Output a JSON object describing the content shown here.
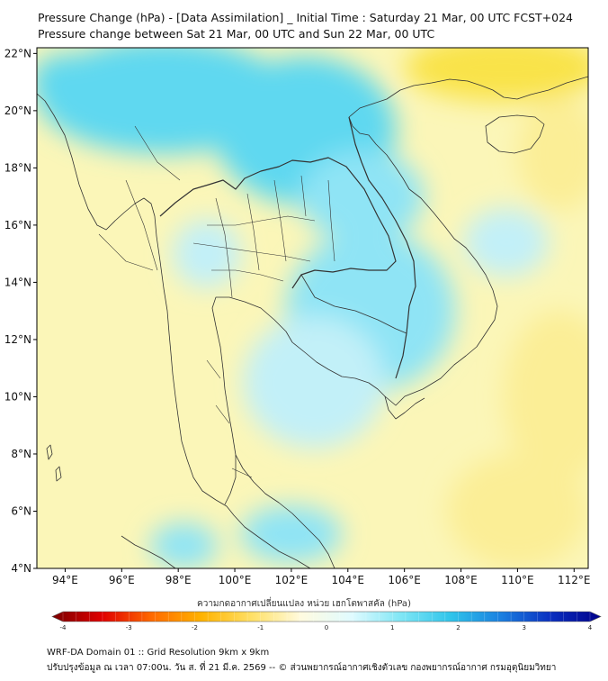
{
  "title_line1": "Pressure Change (hPa) - [Data Assimilation] _ Initial Time : Saturday 21 Mar, 00 UTC FCST+024",
  "title_line2": "Pressure change between Sat 21 Mar, 00 UTC and Sun 22 Mar, 00 UTC",
  "map": {
    "lon_range": [
      93,
      112.5
    ],
    "lat_range": [
      4,
      22.2
    ],
    "lon_ticks": [
      {
        "value": 94,
        "label": "94°E"
      },
      {
        "value": 96,
        "label": "96°E"
      },
      {
        "value": 98,
        "label": "98°E"
      },
      {
        "value": 100,
        "label": "100°E"
      },
      {
        "value": 102,
        "label": "102°E"
      },
      {
        "value": 104,
        "label": "104°E"
      },
      {
        "value": 106,
        "label": "106°E"
      },
      {
        "value": 108,
        "label": "108°E"
      },
      {
        "value": 110,
        "label": "110°E"
      },
      {
        "value": 112,
        "label": "112°E"
      }
    ],
    "lat_ticks": [
      {
        "value": 22,
        "label": "22°N"
      },
      {
        "value": 20,
        "label": "20°N"
      },
      {
        "value": 18,
        "label": "18°N"
      },
      {
        "value": 16,
        "label": "16°N"
      },
      {
        "value": 14,
        "label": "14°N"
      },
      {
        "value": 12,
        "label": "12°N"
      },
      {
        "value": 10,
        "label": "10°N"
      },
      {
        "value": 8,
        "label": "8°N"
      },
      {
        "value": 6,
        "label": "6°N"
      },
      {
        "value": 4,
        "label": "4°N"
      }
    ],
    "background_color": "#fbf6b8",
    "colors": {
      "positive_light": "#c2f0f8",
      "positive_mid": "#8fe4f5",
      "positive_strong": "#5fd8f0",
      "negative_light": "#fbee96",
      "negative_mid": "#f9e34a",
      "coastline": "#333333"
    },
    "positive_regions": [
      {
        "lon": 97.5,
        "lat": 20.5,
        "rx": 4.5,
        "ry": 2.0,
        "level": "strong"
      },
      {
        "lon": 102.5,
        "lat": 19.3,
        "rx": 3.2,
        "ry": 2.6,
        "level": "strong"
      },
      {
        "lon": 104.5,
        "lat": 17.0,
        "rx": 2.2,
        "ry": 1.6,
        "level": "mid"
      },
      {
        "lon": 104.8,
        "lat": 13.0,
        "rx": 3.0,
        "ry": 2.8,
        "level": "mid"
      },
      {
        "lon": 102.8,
        "lat": 10.5,
        "rx": 2.5,
        "ry": 2.3,
        "level": "light"
      },
      {
        "lon": 99.0,
        "lat": 15.0,
        "rx": 1.2,
        "ry": 1.2,
        "level": "light"
      },
      {
        "lon": 109.6,
        "lat": 15.4,
        "rx": 1.5,
        "ry": 1.2,
        "level": "light"
      },
      {
        "lon": 102.0,
        "lat": 5.2,
        "rx": 1.8,
        "ry": 1.0,
        "level": "mid"
      },
      {
        "lon": 98.2,
        "lat": 4.8,
        "rx": 1.2,
        "ry": 0.8,
        "level": "mid"
      },
      {
        "lon": 94.0,
        "lat": 21.0,
        "rx": 1.2,
        "ry": 1.0,
        "level": "strong"
      }
    ],
    "negative_regions": [
      {
        "lon": 109.5,
        "lat": 21.5,
        "rx": 3.5,
        "ry": 1.2,
        "level": "mid"
      },
      {
        "lon": 111.5,
        "lat": 18.5,
        "rx": 1.5,
        "ry": 2.0,
        "level": "light"
      },
      {
        "lon": 111.5,
        "lat": 10.0,
        "rx": 2.0,
        "ry": 3.0,
        "level": "light"
      },
      {
        "lon": 110.0,
        "lat": 6.0,
        "rx": 2.5,
        "ry": 2.0,
        "level": "light"
      }
    ]
  },
  "colorbar": {
    "title": "ความกดอากาศเปลี่ยนแปลง หน่วย เฮกโตพาสคัล (hPa)",
    "min": -4,
    "max": 4,
    "ticks": [
      {
        "value": -4,
        "label": "-4"
      },
      {
        "value": -3,
        "label": "-3"
      },
      {
        "value": -2,
        "label": "-2"
      },
      {
        "value": -1,
        "label": "-1"
      },
      {
        "value": 0,
        "label": "0"
      },
      {
        "value": 1,
        "label": "1"
      },
      {
        "value": 2,
        "label": "2"
      },
      {
        "value": 3,
        "label": "3"
      },
      {
        "value": 4,
        "label": "4"
      }
    ],
    "color_stops": [
      "#7a0000",
      "#e00000",
      "#ff6a00",
      "#ffb300",
      "#ffe066",
      "#fffbe0",
      "#e0fbff",
      "#7fe6f5",
      "#2fc4ea",
      "#1a7fe0",
      "#0a2fc0",
      "#00008a"
    ]
  },
  "footer_line1": "WRF-DA Domain 01 :: Grid Resolution 9km x 9km",
  "footer_line2": "ปรับปรุงข้อมูล ณ เวลา 07:00น. วัน ส. ที่ 21 มี.ค. 2569 -- © ส่วนพยากรณ์อากาศเชิงตัวเลข กองพยากรณ์อากาศ กรมอุตุนิยมวิทยา"
}
